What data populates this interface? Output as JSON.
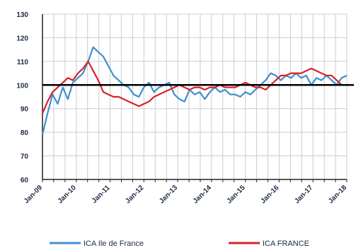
{
  "chart_data": {
    "type": "line",
    "title": "",
    "xlabel": "",
    "ylabel": "",
    "ylim": [
      60,
      130
    ],
    "y_ticks": [
      60,
      70,
      80,
      90,
      100,
      110,
      120,
      130
    ],
    "x_ticks": [
      "Jan-09",
      "Jan-10",
      "Jan-11",
      "Jan-12",
      "Jan-13",
      "Jan-14",
      "Jan-15",
      "Jan-16",
      "Jan-17",
      "Jan-18"
    ],
    "reference_line": 100,
    "grid": true,
    "legend_position": "bottom",
    "series": [
      {
        "name": "ICA Ile de France",
        "color": "#3f8fd0",
        "x": [
          0,
          0.15,
          0.3,
          0.45,
          0.6,
          0.75,
          0.9,
          1.05,
          1.2,
          1.35,
          1.5,
          1.65,
          1.8,
          1.95,
          2.1,
          2.25,
          2.4,
          2.55,
          2.7,
          2.85,
          3.0,
          3.15,
          3.3,
          3.45,
          3.6,
          3.75,
          3.9,
          4.05,
          4.2,
          4.35,
          4.5,
          4.65,
          4.8,
          4.95,
          5.1,
          5.25,
          5.4,
          5.55,
          5.7,
          5.85,
          6.0,
          6.15,
          6.3,
          6.45,
          6.6,
          6.75,
          6.9,
          7.05,
          7.2,
          7.35,
          7.5,
          7.65,
          7.8,
          7.95,
          8.1,
          8.25,
          8.4,
          8.55,
          8.7,
          8.85,
          9.0
        ],
        "values": [
          79,
          88,
          96,
          92,
          99,
          94,
          101,
          103,
          105,
          110,
          116,
          114,
          112,
          108,
          104,
          102,
          100,
          99,
          96,
          95,
          99,
          101,
          97,
          99,
          100,
          101,
          96,
          94,
          93,
          98,
          96,
          97,
          94,
          97,
          99,
          97,
          98,
          96,
          96,
          95,
          97,
          96,
          98,
          100,
          102,
          105,
          104,
          102,
          104,
          103,
          105,
          103,
          104,
          100,
          103,
          102,
          104,
          102,
          100,
          103,
          104
        ]
      },
      {
        "name": "ICA FRANCE",
        "color": "#d8232a",
        "x": [
          0,
          0.15,
          0.3,
          0.45,
          0.6,
          0.75,
          0.9,
          1.05,
          1.2,
          1.35,
          1.5,
          1.65,
          1.8,
          1.95,
          2.1,
          2.25,
          2.4,
          2.55,
          2.7,
          2.85,
          3.0,
          3.15,
          3.3,
          3.45,
          3.6,
          3.75,
          3.9,
          4.05,
          4.2,
          4.35,
          4.5,
          4.65,
          4.8,
          4.95,
          5.1,
          5.25,
          5.4,
          5.55,
          5.7,
          5.85,
          6.0,
          6.15,
          6.3,
          6.45,
          6.6,
          6.75,
          6.9,
          7.05,
          7.2,
          7.35,
          7.5,
          7.65,
          7.8,
          7.95,
          8.1,
          8.25,
          8.4,
          8.55,
          8.7,
          8.85,
          9.0
        ],
        "values": [
          88,
          93,
          97,
          99,
          101,
          103,
          102,
          105,
          107,
          110,
          106,
          102,
          97,
          96,
          95,
          95,
          94,
          93,
          92,
          91,
          92,
          93,
          95,
          96,
          97,
          98,
          99,
          100,
          99,
          98,
          99,
          99,
          98,
          99,
          99,
          100,
          99,
          99,
          99,
          100,
          101,
          100,
          99,
          99,
          98,
          100,
          102,
          104,
          104,
          105,
          105,
          105,
          106,
          107,
          106,
          105,
          104,
          104,
          102,
          100,
          100
        ]
      }
    ]
  },
  "legend": [
    {
      "label": "ICA Ile de France",
      "color": "#3f8fd0"
    },
    {
      "label": "ICA FRANCE",
      "color": "#d8232a"
    }
  ]
}
